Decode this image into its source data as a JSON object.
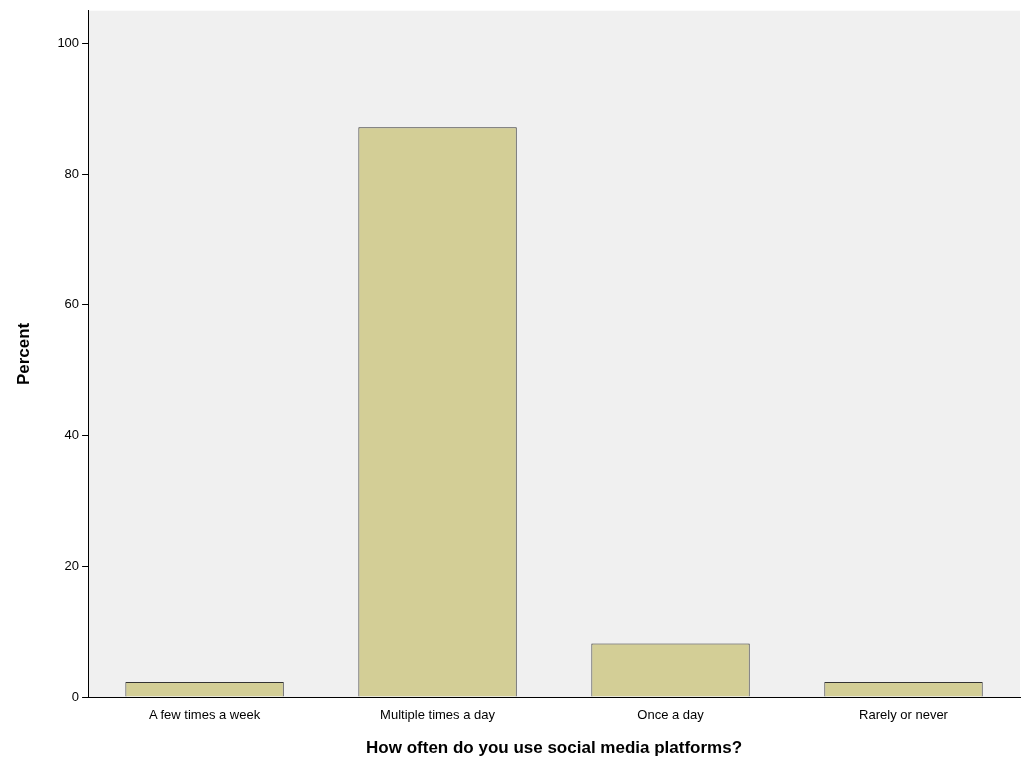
{
  "chart_data": {
    "type": "bar",
    "xlabel": "How often do you use social media platforms?",
    "ylabel": "Percent",
    "categories": [
      "A few times a week",
      "Multiple times a day",
      "Once a day",
      "Rarely or never"
    ],
    "values": [
      2.3,
      87.2,
      8.2,
      2.3
    ],
    "color": "#d3ce96",
    "ylim": [
      0,
      105
    ],
    "yticks": [
      0,
      20,
      40,
      60,
      80,
      100
    ],
    "grid": false,
    "legend": false
  }
}
